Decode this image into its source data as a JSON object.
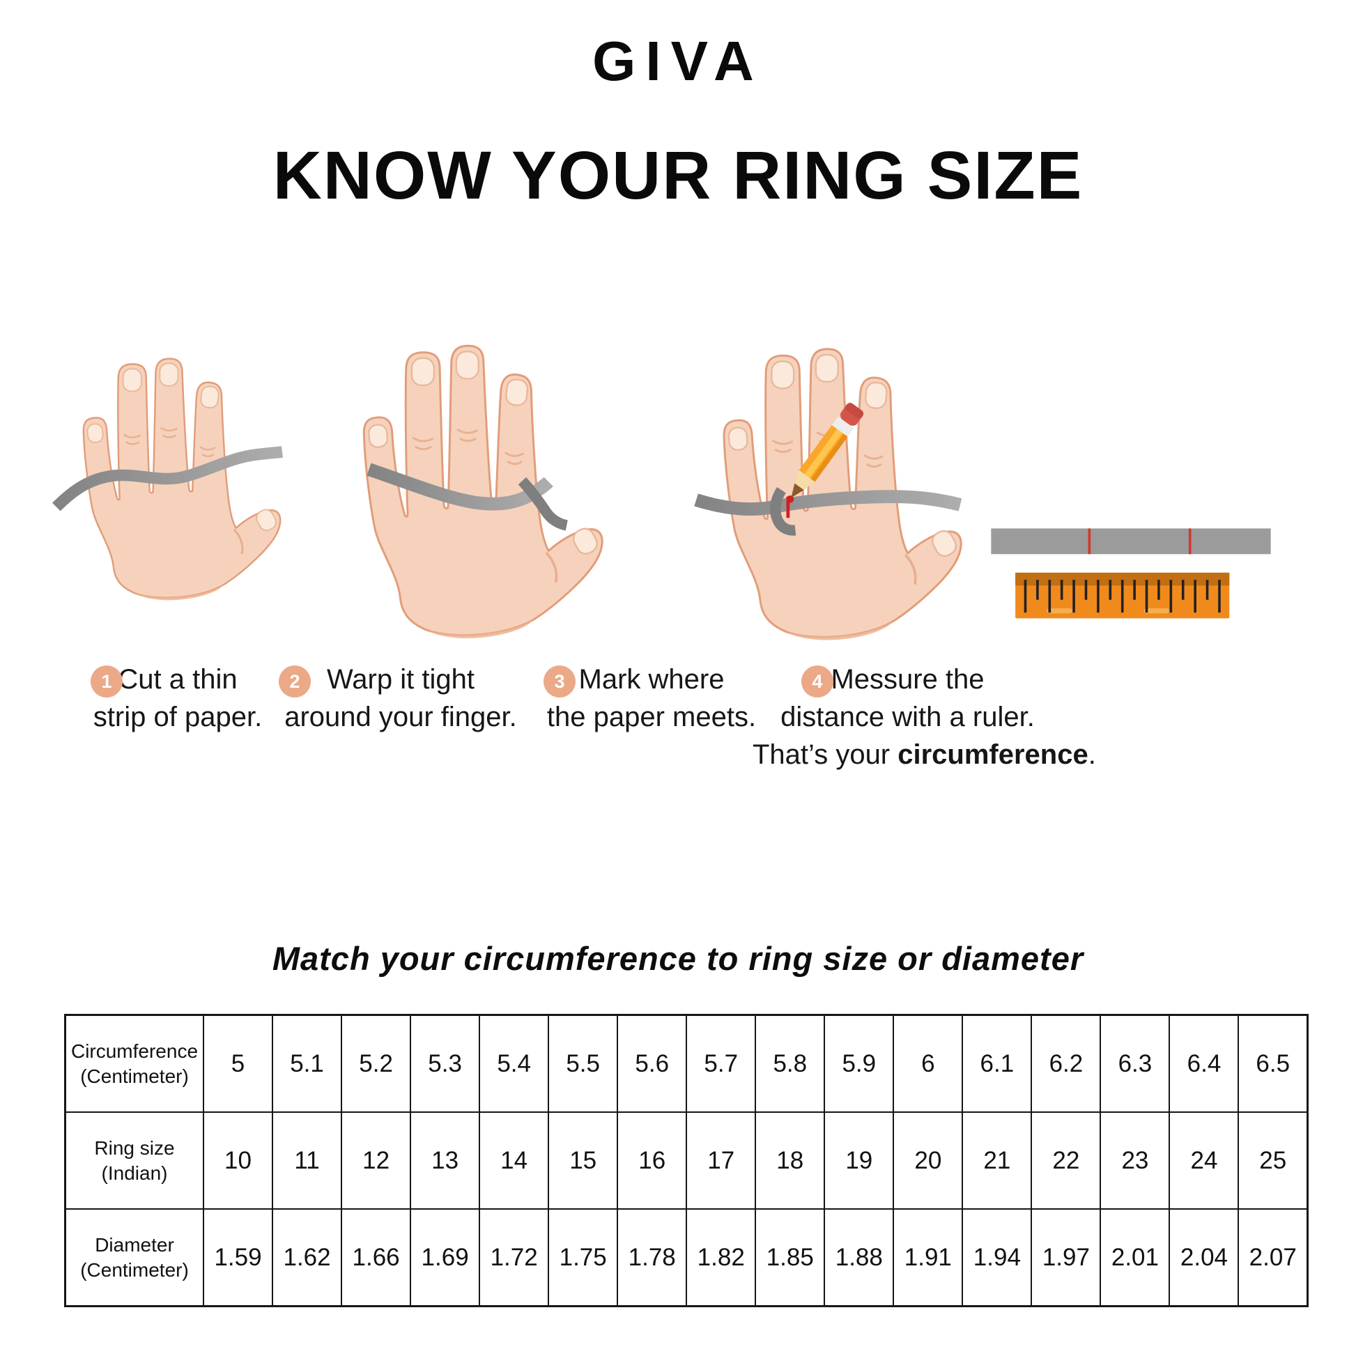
{
  "brand": {
    "logo_text": "GIVA"
  },
  "title": "KNOW YOUR RING SIZE",
  "steps": [
    {
      "number": "1",
      "illustration": "hand-with-paper-strip",
      "lines": [
        "Cut a thin",
        "strip of paper."
      ]
    },
    {
      "number": "2",
      "illustration": "hand-with-strip-wrapped-around-finger",
      "lines": [
        "Warp it tight",
        "around your finger."
      ]
    },
    {
      "number": "3",
      "illustration": "hand-with-pencil-marking-strip",
      "lines": [
        "Mark where",
        "the paper meets."
      ]
    },
    {
      "number": "4",
      "illustration": "marked-strip-and-ruler",
      "lines": [
        "Messure the",
        "distance with a ruler.",
        "That’s your **circumference**."
      ]
    }
  ],
  "size_table": {
    "title": "Match your circumference to ring size or diameter",
    "rows": [
      {
        "label_line1": "Circumference",
        "label_line2": "(Centimeter)",
        "values": [
          "5",
          "5.1",
          "5.2",
          "5.3",
          "5.4",
          "5.5",
          "5.6",
          "5.7",
          "5.8",
          "5.9",
          "6",
          "6.1",
          "6.2",
          "6.3",
          "6.4",
          "6.5"
        ]
      },
      {
        "label_line1": "Ring size",
        "label_line2": "(Indian)",
        "values": [
          "10",
          "11",
          "12",
          "13",
          "14",
          "15",
          "16",
          "17",
          "18",
          "19",
          "20",
          "21",
          "22",
          "23",
          "24",
          "25"
        ]
      },
      {
        "label_line1": "Diameter",
        "label_line2": "(Centimeter)",
        "values": [
          "1.59",
          "1.62",
          "1.66",
          "1.69",
          "1.72",
          "1.75",
          "1.78",
          "1.82",
          "1.85",
          "1.88",
          "1.91",
          "1.94",
          "1.97",
          "2.01",
          "2.04",
          "2.07"
        ]
      }
    ]
  },
  "colors": {
    "step_badge": "#EBA987",
    "skin": "#F6D2BC",
    "skin_outline": "#E29C79",
    "strip_gray": "#9B9B9B",
    "ruler_orange": "#F08A1D",
    "ruler_band": "#C26E12",
    "mark_red": "#D0372C"
  }
}
